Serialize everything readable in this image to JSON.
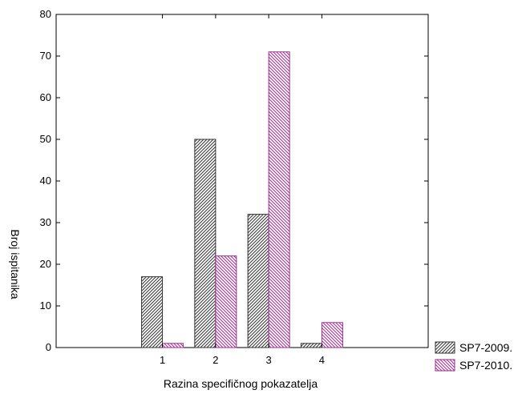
{
  "chart_data": {
    "type": "bar",
    "title": "",
    "xlabel": "Razina specifičnog pokazatelja",
    "ylabel": "Broj ispitanika",
    "categories": [
      "1",
      "2",
      "3",
      "4"
    ],
    "x_range": [
      -1,
      6
    ],
    "ylim": [
      0,
      80
    ],
    "yticks": [
      0,
      10,
      20,
      30,
      40,
      50,
      60,
      70,
      80
    ],
    "grid": false,
    "legend_position": "bottom-right-outside",
    "series": [
      {
        "name": "SP7-2009.",
        "values": [
          17,
          50,
          32,
          1
        ],
        "color": "#333333",
        "pattern": "hatched"
      },
      {
        "name": "SP7-2010.",
        "values": [
          1,
          22,
          71,
          6
        ],
        "color": "#9b2d8e",
        "pattern": "hatched"
      }
    ]
  }
}
